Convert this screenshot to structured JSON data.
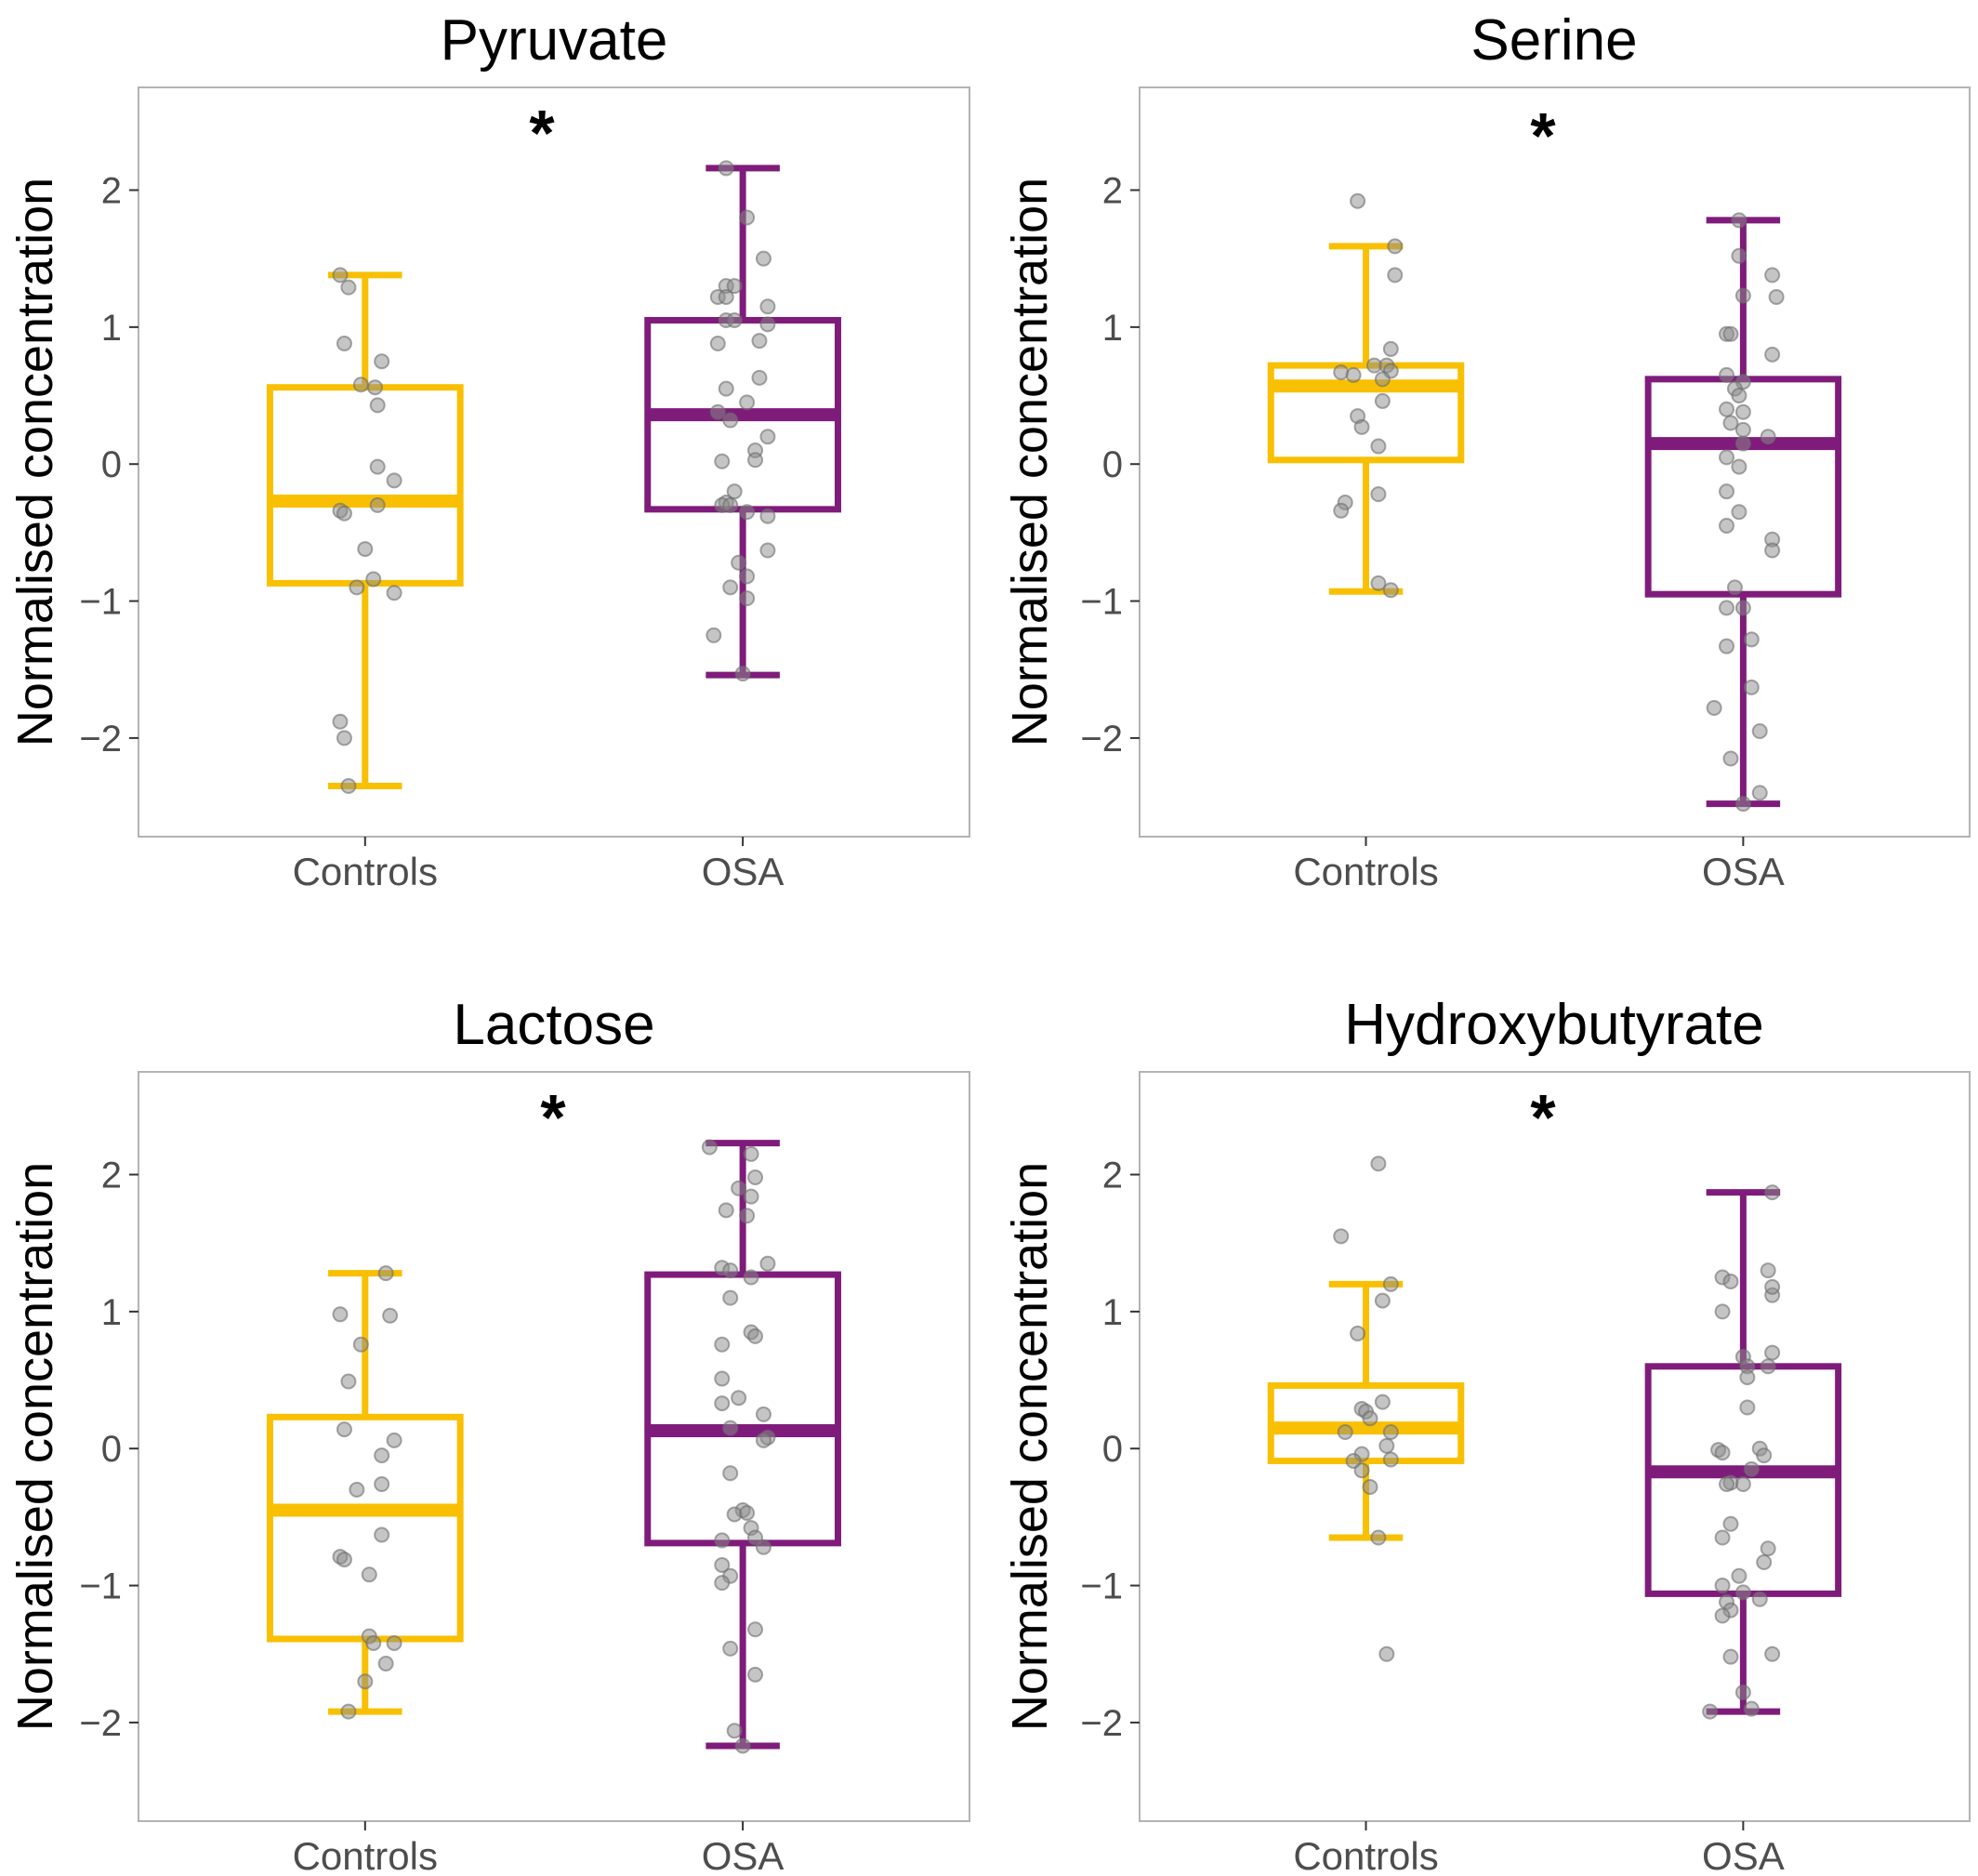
{
  "colors": {
    "Controls": "#F8C000",
    "OSA": "#7F1C7B",
    "points": "#8c8c8c"
  },
  "chart_data": [
    {
      "type": "box",
      "title": "Pyruvate",
      "ylabel": "Normalised concentration",
      "categories": [
        "Controls",
        "OSA"
      ],
      "ylim": [
        -2.72,
        2.75
      ],
      "yticks": [
        -2,
        -1,
        0,
        1,
        2
      ],
      "yticklabels": [
        "−2",
        "−1",
        "0",
        "1",
        "2"
      ],
      "annotation": "*",
      "boxes": [
        {
          "category": "Controls",
          "low": -2.35,
          "q1": -0.87,
          "median": -0.27,
          "q3": 0.56,
          "high": 1.38
        },
        {
          "category": "OSA",
          "low": -1.54,
          "q1": -0.33,
          "median": 0.36,
          "q3": 1.05,
          "high": 2.16
        }
      ],
      "points": [
        [
          [
            -0.3,
            1.38
          ],
          [
            -0.2,
            1.29
          ],
          [
            -0.25,
            0.88
          ],
          [
            0.2,
            0.75
          ],
          [
            -0.05,
            0.58
          ],
          [
            0.12,
            0.56
          ],
          [
            0.15,
            0.43
          ],
          [
            0.15,
            -0.02
          ],
          [
            0.35,
            -0.12
          ],
          [
            0.15,
            -0.3
          ],
          [
            -0.3,
            -0.34
          ],
          [
            -0.25,
            -0.36
          ],
          [
            0.0,
            -0.62
          ],
          [
            0.1,
            -0.84
          ],
          [
            -0.1,
            -0.9
          ],
          [
            0.35,
            -0.94
          ],
          [
            -0.3,
            -1.88
          ],
          [
            -0.25,
            -2.0
          ],
          [
            -0.2,
            -2.35
          ]
        ],
        [
          [
            -0.2,
            2.16
          ],
          [
            0.05,
            1.8
          ],
          [
            0.25,
            1.5
          ],
          [
            -0.2,
            1.3
          ],
          [
            -0.1,
            1.3
          ],
          [
            -0.3,
            1.22
          ],
          [
            -0.2,
            1.22
          ],
          [
            0.3,
            1.15
          ],
          [
            -0.2,
            1.05
          ],
          [
            -0.1,
            1.05
          ],
          [
            0.3,
            1.02
          ],
          [
            -0.3,
            0.88
          ],
          [
            0.2,
            0.9
          ],
          [
            0.2,
            0.63
          ],
          [
            -0.2,
            0.55
          ],
          [
            0.05,
            0.45
          ],
          [
            -0.3,
            0.38
          ],
          [
            -0.15,
            0.32
          ],
          [
            0.3,
            0.2
          ],
          [
            0.15,
            0.1
          ],
          [
            0.15,
            0.03
          ],
          [
            -0.25,
            0.02
          ],
          [
            -0.1,
            -0.2
          ],
          [
            -0.2,
            -0.28
          ],
          [
            -0.25,
            -0.3
          ],
          [
            -0.15,
            -0.3
          ],
          [
            0.05,
            -0.35
          ],
          [
            0.3,
            -0.38
          ],
          [
            0.3,
            -0.63
          ],
          [
            -0.05,
            -0.72
          ],
          [
            0.05,
            -0.82
          ],
          [
            -0.15,
            -0.9
          ],
          [
            0.05,
            -0.98
          ],
          [
            -0.35,
            -1.25
          ],
          [
            0.0,
            -1.53
          ]
        ]
      ]
    },
    {
      "type": "box",
      "title": "Serine",
      "ylabel": "Normalised concentration",
      "categories": [
        "Controls",
        "OSA"
      ],
      "ylim": [
        -2.72,
        2.75
      ],
      "yticks": [
        -2,
        -1,
        0,
        1,
        2
      ],
      "yticklabels": [
        "−2",
        "−1",
        "0",
        "1",
        "2"
      ],
      "annotation": "*",
      "boxes": [
        {
          "category": "Controls",
          "low": -0.93,
          "q1": 0.03,
          "median": 0.57,
          "q3": 0.72,
          "high": 1.59
        },
        {
          "category": "OSA",
          "low": -2.48,
          "q1": -0.95,
          "median": 0.15,
          "q3": 0.62,
          "high": 1.78
        }
      ],
      "points": [
        [
          [
            -0.1,
            1.92
          ],
          [
            0.35,
            1.59
          ],
          [
            0.35,
            1.38
          ],
          [
            0.3,
            0.84
          ],
          [
            0.1,
            0.72
          ],
          [
            0.25,
            0.72
          ],
          [
            0.3,
            0.68
          ],
          [
            -0.3,
            0.67
          ],
          [
            -0.15,
            0.65
          ],
          [
            0.2,
            0.62
          ],
          [
            -0.1,
            0.35
          ],
          [
            0.2,
            0.46
          ],
          [
            -0.05,
            0.27
          ],
          [
            0.15,
            0.13
          ],
          [
            0.15,
            -0.22
          ],
          [
            -0.25,
            -0.28
          ],
          [
            -0.3,
            -0.34
          ],
          [
            0.15,
            -0.87
          ],
          [
            0.3,
            -0.92
          ]
        ],
        [
          [
            -0.05,
            1.78
          ],
          [
            -0.05,
            1.52
          ],
          [
            0.35,
            1.38
          ],
          [
            0.0,
            1.23
          ],
          [
            0.4,
            1.22
          ],
          [
            -0.2,
            0.95
          ],
          [
            -0.15,
            0.95
          ],
          [
            0.35,
            0.8
          ],
          [
            -0.2,
            0.65
          ],
          [
            0.0,
            0.6
          ],
          [
            -0.1,
            0.55
          ],
          [
            -0.05,
            0.5
          ],
          [
            -0.2,
            0.4
          ],
          [
            0.0,
            0.38
          ],
          [
            -0.15,
            0.3
          ],
          [
            0.0,
            0.25
          ],
          [
            0.3,
            0.2
          ],
          [
            0.0,
            0.15
          ],
          [
            -0.2,
            0.05
          ],
          [
            -0.05,
            -0.02
          ],
          [
            -0.2,
            -0.2
          ],
          [
            -0.05,
            -0.35
          ],
          [
            -0.2,
            -0.45
          ],
          [
            0.35,
            -0.55
          ],
          [
            0.35,
            -0.63
          ],
          [
            -0.1,
            -0.9
          ],
          [
            -0.2,
            -1.05
          ],
          [
            0.0,
            -1.05
          ],
          [
            0.1,
            -1.28
          ],
          [
            -0.2,
            -1.33
          ],
          [
            -0.35,
            -1.78
          ],
          [
            0.1,
            -1.63
          ],
          [
            0.2,
            -1.95
          ],
          [
            -0.15,
            -2.15
          ],
          [
            0.2,
            -2.4
          ],
          [
            0.0,
            -2.48
          ]
        ]
      ]
    },
    {
      "type": "box",
      "title": "Lactose",
      "ylabel": "Normalised concentration",
      "categories": [
        "Controls",
        "OSA"
      ],
      "ylim": [
        -2.72,
        2.75
      ],
      "yticks": [
        -2,
        -1,
        0,
        1,
        2
      ],
      "yticklabels": [
        "−2",
        "−1",
        "0",
        "1",
        "2"
      ],
      "annotation": "*",
      "boxes": [
        {
          "category": "Controls",
          "low": -1.92,
          "q1": -1.39,
          "median": -0.45,
          "q3": 0.23,
          "high": 1.28
        },
        {
          "category": "OSA",
          "low": -2.17,
          "q1": -0.69,
          "median": 0.13,
          "q3": 1.27,
          "high": 2.23
        }
      ],
      "points": [
        [
          [
            0.25,
            1.28
          ],
          [
            0.3,
            0.97
          ],
          [
            -0.3,
            0.98
          ],
          [
            -0.05,
            0.76
          ],
          [
            -0.2,
            0.49
          ],
          [
            -0.25,
            0.14
          ],
          [
            0.35,
            0.06
          ],
          [
            0.2,
            -0.05
          ],
          [
            0.2,
            -0.26
          ],
          [
            -0.1,
            -0.3
          ],
          [
            0.2,
            -0.63
          ],
          [
            -0.3,
            -0.79
          ],
          [
            -0.25,
            -0.81
          ],
          [
            0.05,
            -0.92
          ],
          [
            0.05,
            -1.37
          ],
          [
            0.1,
            -1.42
          ],
          [
            0.35,
            -1.42
          ],
          [
            0.25,
            -1.57
          ],
          [
            0.0,
            -1.7
          ],
          [
            -0.2,
            -1.92
          ]
        ],
        [
          [
            -0.4,
            2.2
          ],
          [
            0.1,
            2.15
          ],
          [
            0.15,
            1.98
          ],
          [
            -0.05,
            1.9
          ],
          [
            0.1,
            1.84
          ],
          [
            -0.2,
            1.74
          ],
          [
            0.05,
            1.7
          ],
          [
            0.3,
            1.35
          ],
          [
            -0.25,
            1.32
          ],
          [
            -0.15,
            1.3
          ],
          [
            0.1,
            1.25
          ],
          [
            -0.15,
            1.1
          ],
          [
            0.1,
            0.85
          ],
          [
            0.15,
            0.82
          ],
          [
            -0.25,
            0.76
          ],
          [
            -0.25,
            0.51
          ],
          [
            -0.05,
            0.37
          ],
          [
            -0.25,
            0.33
          ],
          [
            0.25,
            0.25
          ],
          [
            -0.15,
            0.15
          ],
          [
            0.3,
            0.08
          ],
          [
            0.25,
            0.06
          ],
          [
            -0.15,
            -0.18
          ],
          [
            0.0,
            -0.45
          ],
          [
            -0.1,
            -0.48
          ],
          [
            0.05,
            -0.47
          ],
          [
            0.1,
            -0.58
          ],
          [
            0.15,
            -0.65
          ],
          [
            0.25,
            -0.72
          ],
          [
            -0.25,
            -0.67
          ],
          [
            -0.25,
            -0.85
          ],
          [
            -0.15,
            -0.93
          ],
          [
            -0.25,
            -0.98
          ],
          [
            0.15,
            -1.32
          ],
          [
            -0.15,
            -1.46
          ],
          [
            0.15,
            -1.65
          ],
          [
            -0.1,
            -2.06
          ],
          [
            0.0,
            -2.17
          ]
        ]
      ]
    },
    {
      "type": "box",
      "title": "Hydroxybutyrate",
      "ylabel": "Normalised concentration",
      "categories": [
        "Controls",
        "OSA"
      ],
      "ylim": [
        -2.72,
        2.75
      ],
      "yticks": [
        -2,
        -1,
        0,
        1,
        2
      ],
      "yticklabels": [
        "−2",
        "−1",
        "0",
        "1",
        "2"
      ],
      "annotation": "*",
      "boxes": [
        {
          "category": "Controls",
          "low": -0.65,
          "q1": -0.09,
          "median": 0.15,
          "q3": 0.46,
          "high": 1.2
        },
        {
          "category": "OSA",
          "low": -1.92,
          "q1": -1.06,
          "median": -0.17,
          "q3": 0.6,
          "high": 1.87
        }
      ],
      "points": [
        [
          [
            0.15,
            2.08
          ],
          [
            -0.3,
            1.55
          ],
          [
            0.3,
            1.2
          ],
          [
            0.2,
            1.08
          ],
          [
            -0.1,
            0.84
          ],
          [
            0.2,
            0.34
          ],
          [
            -0.05,
            0.29
          ],
          [
            0.0,
            0.27
          ],
          [
            0.05,
            0.22
          ],
          [
            -0.25,
            0.12
          ],
          [
            0.3,
            0.12
          ],
          [
            0.25,
            0.02
          ],
          [
            -0.05,
            -0.04
          ],
          [
            -0.15,
            -0.09
          ],
          [
            0.3,
            -0.08
          ],
          [
            -0.05,
            -0.16
          ],
          [
            0.05,
            -0.28
          ],
          [
            0.15,
            -0.65
          ],
          [
            0.25,
            -1.5
          ]
        ],
        [
          [
            0.35,
            1.87
          ],
          [
            -0.25,
            1.25
          ],
          [
            -0.15,
            1.22
          ],
          [
            0.3,
            1.3
          ],
          [
            0.35,
            1.12
          ],
          [
            0.35,
            1.18
          ],
          [
            -0.25,
            1.0
          ],
          [
            0.35,
            0.7
          ],
          [
            0.0,
            0.67
          ],
          [
            0.05,
            0.6
          ],
          [
            0.3,
            0.6
          ],
          [
            0.05,
            0.52
          ],
          [
            0.05,
            0.3
          ],
          [
            -0.3,
            -0.01
          ],
          [
            -0.25,
            -0.03
          ],
          [
            0.2,
            0.0
          ],
          [
            0.25,
            -0.05
          ],
          [
            0.1,
            -0.15
          ],
          [
            -0.15,
            -0.25
          ],
          [
            -0.2,
            -0.26
          ],
          [
            0.0,
            -0.26
          ],
          [
            -0.15,
            -0.55
          ],
          [
            -0.25,
            -0.65
          ],
          [
            0.3,
            -0.73
          ],
          [
            0.25,
            -0.83
          ],
          [
            -0.05,
            -0.93
          ],
          [
            -0.25,
            -1.0
          ],
          [
            0.0,
            -1.05
          ],
          [
            -0.2,
            -1.12
          ],
          [
            -0.15,
            -1.18
          ],
          [
            -0.25,
            -1.22
          ],
          [
            0.2,
            -1.1
          ],
          [
            0.35,
            -1.5
          ],
          [
            -0.15,
            -1.52
          ],
          [
            0.0,
            -1.78
          ],
          [
            0.1,
            -1.9
          ],
          [
            -0.4,
            -1.92
          ]
        ]
      ]
    }
  ]
}
